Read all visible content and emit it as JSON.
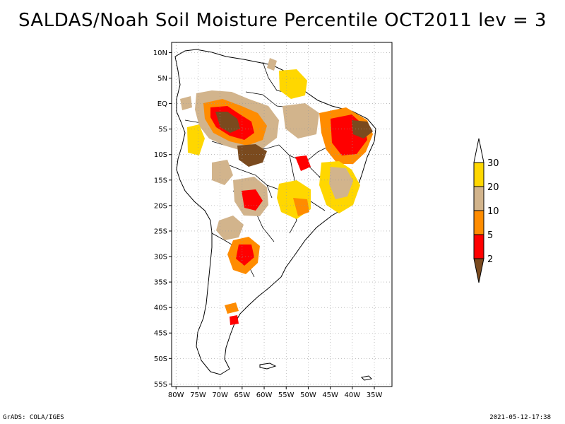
{
  "title": "SALDAS/Noah Soil Moisture Percentile OCT2011 lev = 3",
  "map": {
    "lat_ticks": [
      "10N",
      "5N",
      "EQ",
      "5S",
      "10S",
      "15S",
      "20S",
      "25S",
      "30S",
      "35S",
      "40S",
      "45S",
      "50S",
      "55S"
    ],
    "lon_ticks": [
      "80W",
      "75W",
      "70W",
      "65W",
      "60W",
      "55W",
      "50W",
      "45W",
      "40W",
      "35W"
    ],
    "lat_range": [
      -55.5,
      12
    ],
    "lon_range": [
      -81,
      -31
    ],
    "gridlines": "dotted"
  },
  "legend": {
    "thresholds": [
      "2",
      "5",
      "10",
      "20",
      "30"
    ],
    "colors": [
      "#7a4a1e",
      "#ff0000",
      "#ff8c00",
      "#d2b48c",
      "#ffd700",
      "#ffffff"
    ],
    "ends": "arrows"
  },
  "footer": {
    "left": "GrADS: COLA/IGES",
    "right": "2021-05-12-17:38"
  }
}
